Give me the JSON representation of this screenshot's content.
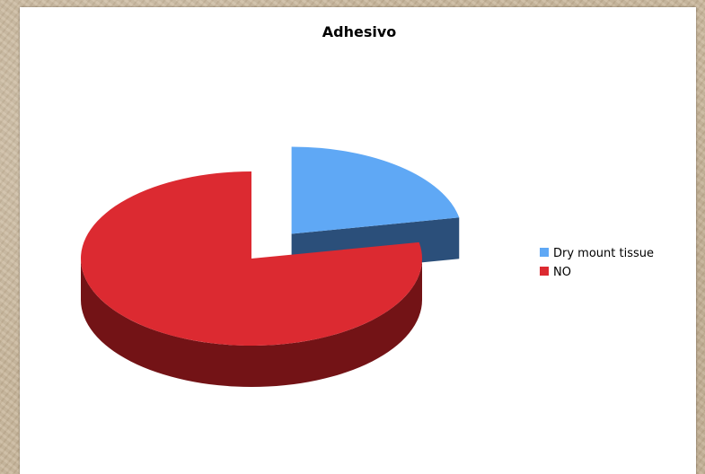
{
  "chart_data": {
    "type": "pie",
    "style": "3d-exploded",
    "title": "Adhesivo",
    "categories": [
      "Dry mount tissue",
      "NO"
    ],
    "values": [
      22,
      78
    ],
    "colors": {
      "top": [
        "#5fa8f5",
        "#dc2a31"
      ],
      "side": [
        "#2b4f7a",
        "#731316"
      ]
    },
    "legend_position": "right"
  }
}
